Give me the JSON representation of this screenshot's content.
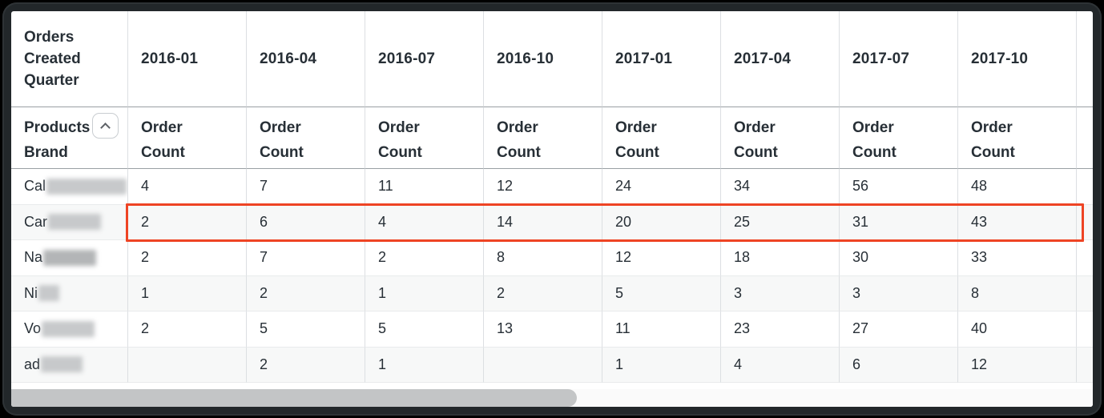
{
  "table": {
    "corner_header": "Orders Created Quarter",
    "row_dimension": "Products Brand",
    "measure_label": "Order Count",
    "quarters": [
      "2016-01",
      "2016-04",
      "2016-07",
      "2016-10",
      "2017-01",
      "2017-04",
      "2017-07",
      "2017-10"
    ],
    "rows": [
      {
        "brand_prefix": "Cal",
        "highlighted": false,
        "values": [
          "4",
          "7",
          "11",
          "12",
          "24",
          "34",
          "56",
          "48"
        ]
      },
      {
        "brand_prefix": "Car",
        "highlighted": true,
        "values": [
          "2",
          "6",
          "4",
          "14",
          "20",
          "25",
          "31",
          "43"
        ]
      },
      {
        "brand_prefix": "Na",
        "highlighted": false,
        "values": [
          "2",
          "7",
          "2",
          "8",
          "12",
          "18",
          "30",
          "33"
        ]
      },
      {
        "brand_prefix": "Ni",
        "highlighted": false,
        "values": [
          "1",
          "2",
          "1",
          "2",
          "5",
          "3",
          "3",
          "8"
        ]
      },
      {
        "brand_prefix": "Vo",
        "highlighted": false,
        "values": [
          "2",
          "5",
          "5",
          "13",
          "11",
          "23",
          "27",
          "40"
        ]
      },
      {
        "brand_prefix": "ad",
        "highlighted": false,
        "values": [
          "",
          "2",
          "1",
          "",
          "1",
          "4",
          "6",
          "12"
        ]
      }
    ],
    "icons": {
      "sort_button": "chevron-up-icon"
    },
    "colors": {
      "highlight_border": "#ee4424",
      "header_text": "#272f36",
      "row_stripe": "#f7f8f8",
      "scrollbar_thumb": "#c3c5c6"
    }
  },
  "scrollbar": {
    "orientation": "horizontal"
  }
}
